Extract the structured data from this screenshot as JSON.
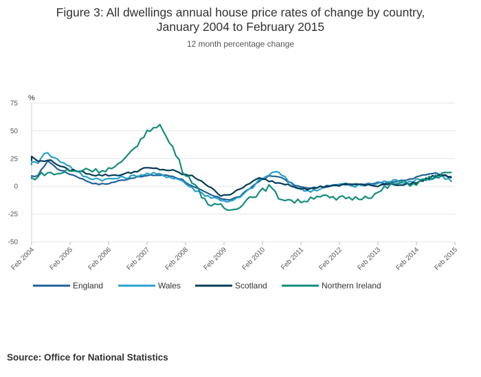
{
  "source": "Source: Office for National Statistics",
  "chart_data": {
    "type": "line",
    "title_line1": "Figure 3: All dwellings annual house price rates of change by country,",
    "title_line2": "January 2004 to February 2015",
    "subtitle": "12 month percentage change",
    "ylabel": "%",
    "ylim": [
      -50,
      75
    ],
    "yticks": [
      -50,
      -25,
      0,
      25,
      50,
      75
    ],
    "xlim": [
      2004.083,
      2015.083
    ],
    "xticks": [
      {
        "x": 2004.083,
        "label": "Feb 2004"
      },
      {
        "x": 2005.083,
        "label": "Feb 2005"
      },
      {
        "x": 2006.083,
        "label": "Feb 2006"
      },
      {
        "x": 2007.083,
        "label": "Feb 2007"
      },
      {
        "x": 2008.083,
        "label": "Feb 2008"
      },
      {
        "x": 2009.083,
        "label": "Feb 2009"
      },
      {
        "x": 2010.083,
        "label": "Feb 2010"
      },
      {
        "x": 2011.083,
        "label": "Feb 2011"
      },
      {
        "x": 2012.083,
        "label": "Feb 2012"
      },
      {
        "x": 2013.083,
        "label": "Feb 2013"
      },
      {
        "x": 2014.083,
        "label": "Feb 2014"
      },
      {
        "x": 2015.083,
        "label": "Feb 2015"
      }
    ],
    "grid": true,
    "legend_position": "bottom",
    "series": [
      {
        "name": "England",
        "color": "#206095",
        "points": [
          [
            2004.0,
            8
          ],
          [
            2004.25,
            10
          ],
          [
            2004.5,
            23
          ],
          [
            2004.75,
            16
          ],
          [
            2005.0,
            12
          ],
          [
            2005.25,
            9
          ],
          [
            2005.5,
            5
          ],
          [
            2005.75,
            2
          ],
          [
            2006.0,
            2
          ],
          [
            2006.25,
            4
          ],
          [
            2006.5,
            6
          ],
          [
            2006.75,
            8
          ],
          [
            2007.0,
            9
          ],
          [
            2007.25,
            10
          ],
          [
            2007.5,
            10
          ],
          [
            2007.75,
            9
          ],
          [
            2008.0,
            6
          ],
          [
            2008.25,
            0
          ],
          [
            2008.5,
            -4
          ],
          [
            2008.75,
            -8
          ],
          [
            2009.0,
            -11
          ],
          [
            2009.25,
            -12
          ],
          [
            2009.5,
            -9
          ],
          [
            2009.75,
            -2
          ],
          [
            2010.0,
            5
          ],
          [
            2010.25,
            9
          ],
          [
            2010.5,
            9
          ],
          [
            2010.75,
            4
          ],
          [
            2011.0,
            0
          ],
          [
            2011.25,
            -2
          ],
          [
            2011.5,
            -1
          ],
          [
            2011.75,
            0
          ],
          [
            2012.0,
            1
          ],
          [
            2012.25,
            2
          ],
          [
            2012.5,
            2
          ],
          [
            2012.75,
            2
          ],
          [
            2013.0,
            3
          ],
          [
            2013.25,
            3
          ],
          [
            2013.5,
            4
          ],
          [
            2013.75,
            5
          ],
          [
            2014.0,
            7
          ],
          [
            2014.25,
            10
          ],
          [
            2014.5,
            12
          ],
          [
            2014.75,
            11
          ],
          [
            2015.0,
            8
          ],
          [
            2015.083,
            7
          ]
        ]
      },
      {
        "name": "Wales",
        "color": "#27a0cc",
        "points": [
          [
            2004.0,
            20
          ],
          [
            2004.25,
            22
          ],
          [
            2004.42,
            31
          ],
          [
            2004.75,
            24
          ],
          [
            2005.0,
            20
          ],
          [
            2005.25,
            13
          ],
          [
            2005.5,
            8
          ],
          [
            2005.75,
            7
          ],
          [
            2006.0,
            6
          ],
          [
            2006.25,
            7
          ],
          [
            2006.5,
            8
          ],
          [
            2006.75,
            9
          ],
          [
            2007.0,
            11
          ],
          [
            2007.25,
            11
          ],
          [
            2007.5,
            10
          ],
          [
            2007.75,
            8
          ],
          [
            2008.0,
            5
          ],
          [
            2008.25,
            -2
          ],
          [
            2008.5,
            -6
          ],
          [
            2008.75,
            -10
          ],
          [
            2009.0,
            -12
          ],
          [
            2009.25,
            -14
          ],
          [
            2009.5,
            -10
          ],
          [
            2009.75,
            -3
          ],
          [
            2010.0,
            5
          ],
          [
            2010.25,
            10
          ],
          [
            2010.42,
            14
          ],
          [
            2010.75,
            5
          ],
          [
            2011.0,
            -2
          ],
          [
            2011.25,
            -4
          ],
          [
            2011.5,
            -3
          ],
          [
            2011.75,
            -1
          ],
          [
            2012.0,
            1
          ],
          [
            2012.25,
            2
          ],
          [
            2012.5,
            0
          ],
          [
            2012.75,
            1
          ],
          [
            2013.0,
            2
          ],
          [
            2013.25,
            4
          ],
          [
            2013.5,
            5
          ],
          [
            2013.75,
            4
          ],
          [
            2014.0,
            5
          ],
          [
            2014.25,
            6
          ],
          [
            2014.5,
            7
          ],
          [
            2014.75,
            9
          ],
          [
            2015.0,
            5
          ],
          [
            2015.083,
            1
          ]
        ]
      },
      {
        "name": "Scotland",
        "color": "#003c57",
        "points": [
          [
            2004.0,
            23
          ],
          [
            2004.1,
            27
          ],
          [
            2004.25,
            22
          ],
          [
            2004.5,
            24
          ],
          [
            2004.75,
            20
          ],
          [
            2005.0,
            15
          ],
          [
            2005.25,
            14
          ],
          [
            2005.5,
            12
          ],
          [
            2005.75,
            10
          ],
          [
            2006.0,
            10
          ],
          [
            2006.25,
            10
          ],
          [
            2006.5,
            11
          ],
          [
            2006.75,
            13
          ],
          [
            2007.0,
            16
          ],
          [
            2007.25,
            16
          ],
          [
            2007.5,
            15
          ],
          [
            2007.75,
            14
          ],
          [
            2008.0,
            11
          ],
          [
            2008.25,
            9
          ],
          [
            2008.5,
            5
          ],
          [
            2008.75,
            -2
          ],
          [
            2009.0,
            -8
          ],
          [
            2009.25,
            -7
          ],
          [
            2009.5,
            -3
          ],
          [
            2009.75,
            3
          ],
          [
            2010.0,
            7
          ],
          [
            2010.25,
            5
          ],
          [
            2010.5,
            3
          ],
          [
            2010.75,
            2
          ],
          [
            2011.0,
            -1
          ],
          [
            2011.25,
            -3
          ],
          [
            2011.5,
            -1
          ],
          [
            2011.75,
            0
          ],
          [
            2012.0,
            0
          ],
          [
            2012.25,
            2
          ],
          [
            2012.5,
            2
          ],
          [
            2012.75,
            1
          ],
          [
            2013.0,
            0
          ],
          [
            2013.25,
            2
          ],
          [
            2013.5,
            2
          ],
          [
            2013.75,
            1
          ],
          [
            2014.0,
            3
          ],
          [
            2014.25,
            5
          ],
          [
            2014.5,
            9
          ],
          [
            2014.75,
            10
          ],
          [
            2015.0,
            8
          ],
          [
            2015.083,
            7
          ]
        ]
      },
      {
        "name": "Northern Ireland",
        "color": "#118c7b",
        "points": [
          [
            2004.0,
            6
          ],
          [
            2004.25,
            9
          ],
          [
            2004.42,
            12
          ],
          [
            2004.75,
            11
          ],
          [
            2005.0,
            14
          ],
          [
            2005.25,
            13
          ],
          [
            2005.5,
            16
          ],
          [
            2005.75,
            14
          ],
          [
            2006.0,
            15
          ],
          [
            2006.25,
            17
          ],
          [
            2006.5,
            23
          ],
          [
            2006.75,
            35
          ],
          [
            2007.0,
            45
          ],
          [
            2007.25,
            54
          ],
          [
            2007.4,
            56
          ],
          [
            2007.6,
            43
          ],
          [
            2007.8,
            32
          ],
          [
            2008.0,
            15
          ],
          [
            2008.25,
            5
          ],
          [
            2008.5,
            -8
          ],
          [
            2008.75,
            -18
          ],
          [
            2009.0,
            -18
          ],
          [
            2009.25,
            -22
          ],
          [
            2009.5,
            -17
          ],
          [
            2009.75,
            -10
          ],
          [
            2010.0,
            -6
          ],
          [
            2010.25,
            0
          ],
          [
            2010.5,
            -10
          ],
          [
            2010.75,
            -12
          ],
          [
            2011.0,
            -14
          ],
          [
            2011.25,
            -12
          ],
          [
            2011.5,
            -8
          ],
          [
            2011.75,
            -10
          ],
          [
            2012.0,
            -12
          ],
          [
            2012.25,
            -10
          ],
          [
            2012.5,
            -11
          ],
          [
            2012.75,
            -9
          ],
          [
            2013.0,
            -8
          ],
          [
            2013.25,
            -2
          ],
          [
            2013.5,
            2
          ],
          [
            2013.75,
            3
          ],
          [
            2014.0,
            2
          ],
          [
            2014.25,
            5
          ],
          [
            2014.5,
            8
          ],
          [
            2014.75,
            10
          ],
          [
            2015.0,
            12
          ],
          [
            2015.083,
            15
          ]
        ]
      }
    ]
  }
}
